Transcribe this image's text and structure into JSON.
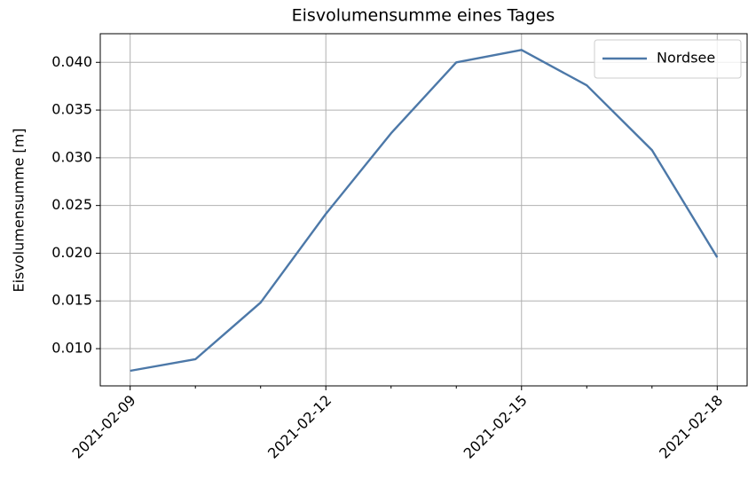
{
  "chart_data": {
    "type": "line",
    "title": "Eisvolumensumme eines Tages",
    "ylabel": "Eisvolumensumme [m]",
    "x": [
      "2021-02-09",
      "2021-02-10",
      "2021-02-11",
      "2021-02-12",
      "2021-02-13",
      "2021-02-14",
      "2021-02-15",
      "2021-02-16",
      "2021-02-17",
      "2021-02-18"
    ],
    "series": [
      {
        "name": "Nordsee",
        "color": "#4c78a8",
        "values": [
          0.00768,
          0.00889,
          0.01483,
          0.02412,
          0.03257,
          0.04,
          0.0413,
          0.03759,
          0.0308,
          0.01957
        ]
      }
    ],
    "xlim": [
      "2021-02-08T13:00",
      "2021-02-18T11:00"
    ],
    "xticks": [
      "2021-02-09",
      "2021-02-12",
      "2021-02-15",
      "2021-02-18"
    ],
    "xminorticks": [
      "2021-02-10",
      "2021-02-11",
      "2021-02-13",
      "2021-02-14",
      "2021-02-16",
      "2021-02-17"
    ],
    "ylim": [
      0.0061,
      0.043
    ],
    "yticks": [
      {
        "value": 0.01,
        "label": "0.010"
      },
      {
        "value": 0.015,
        "label": "0.015"
      },
      {
        "value": 0.02,
        "label": "0.020"
      },
      {
        "value": 0.025,
        "label": "0.025"
      },
      {
        "value": 0.03,
        "label": "0.030"
      },
      {
        "value": 0.035,
        "label": "0.035"
      },
      {
        "value": 0.04,
        "label": "0.040"
      }
    ],
    "grid": true,
    "legend": "upper right"
  }
}
